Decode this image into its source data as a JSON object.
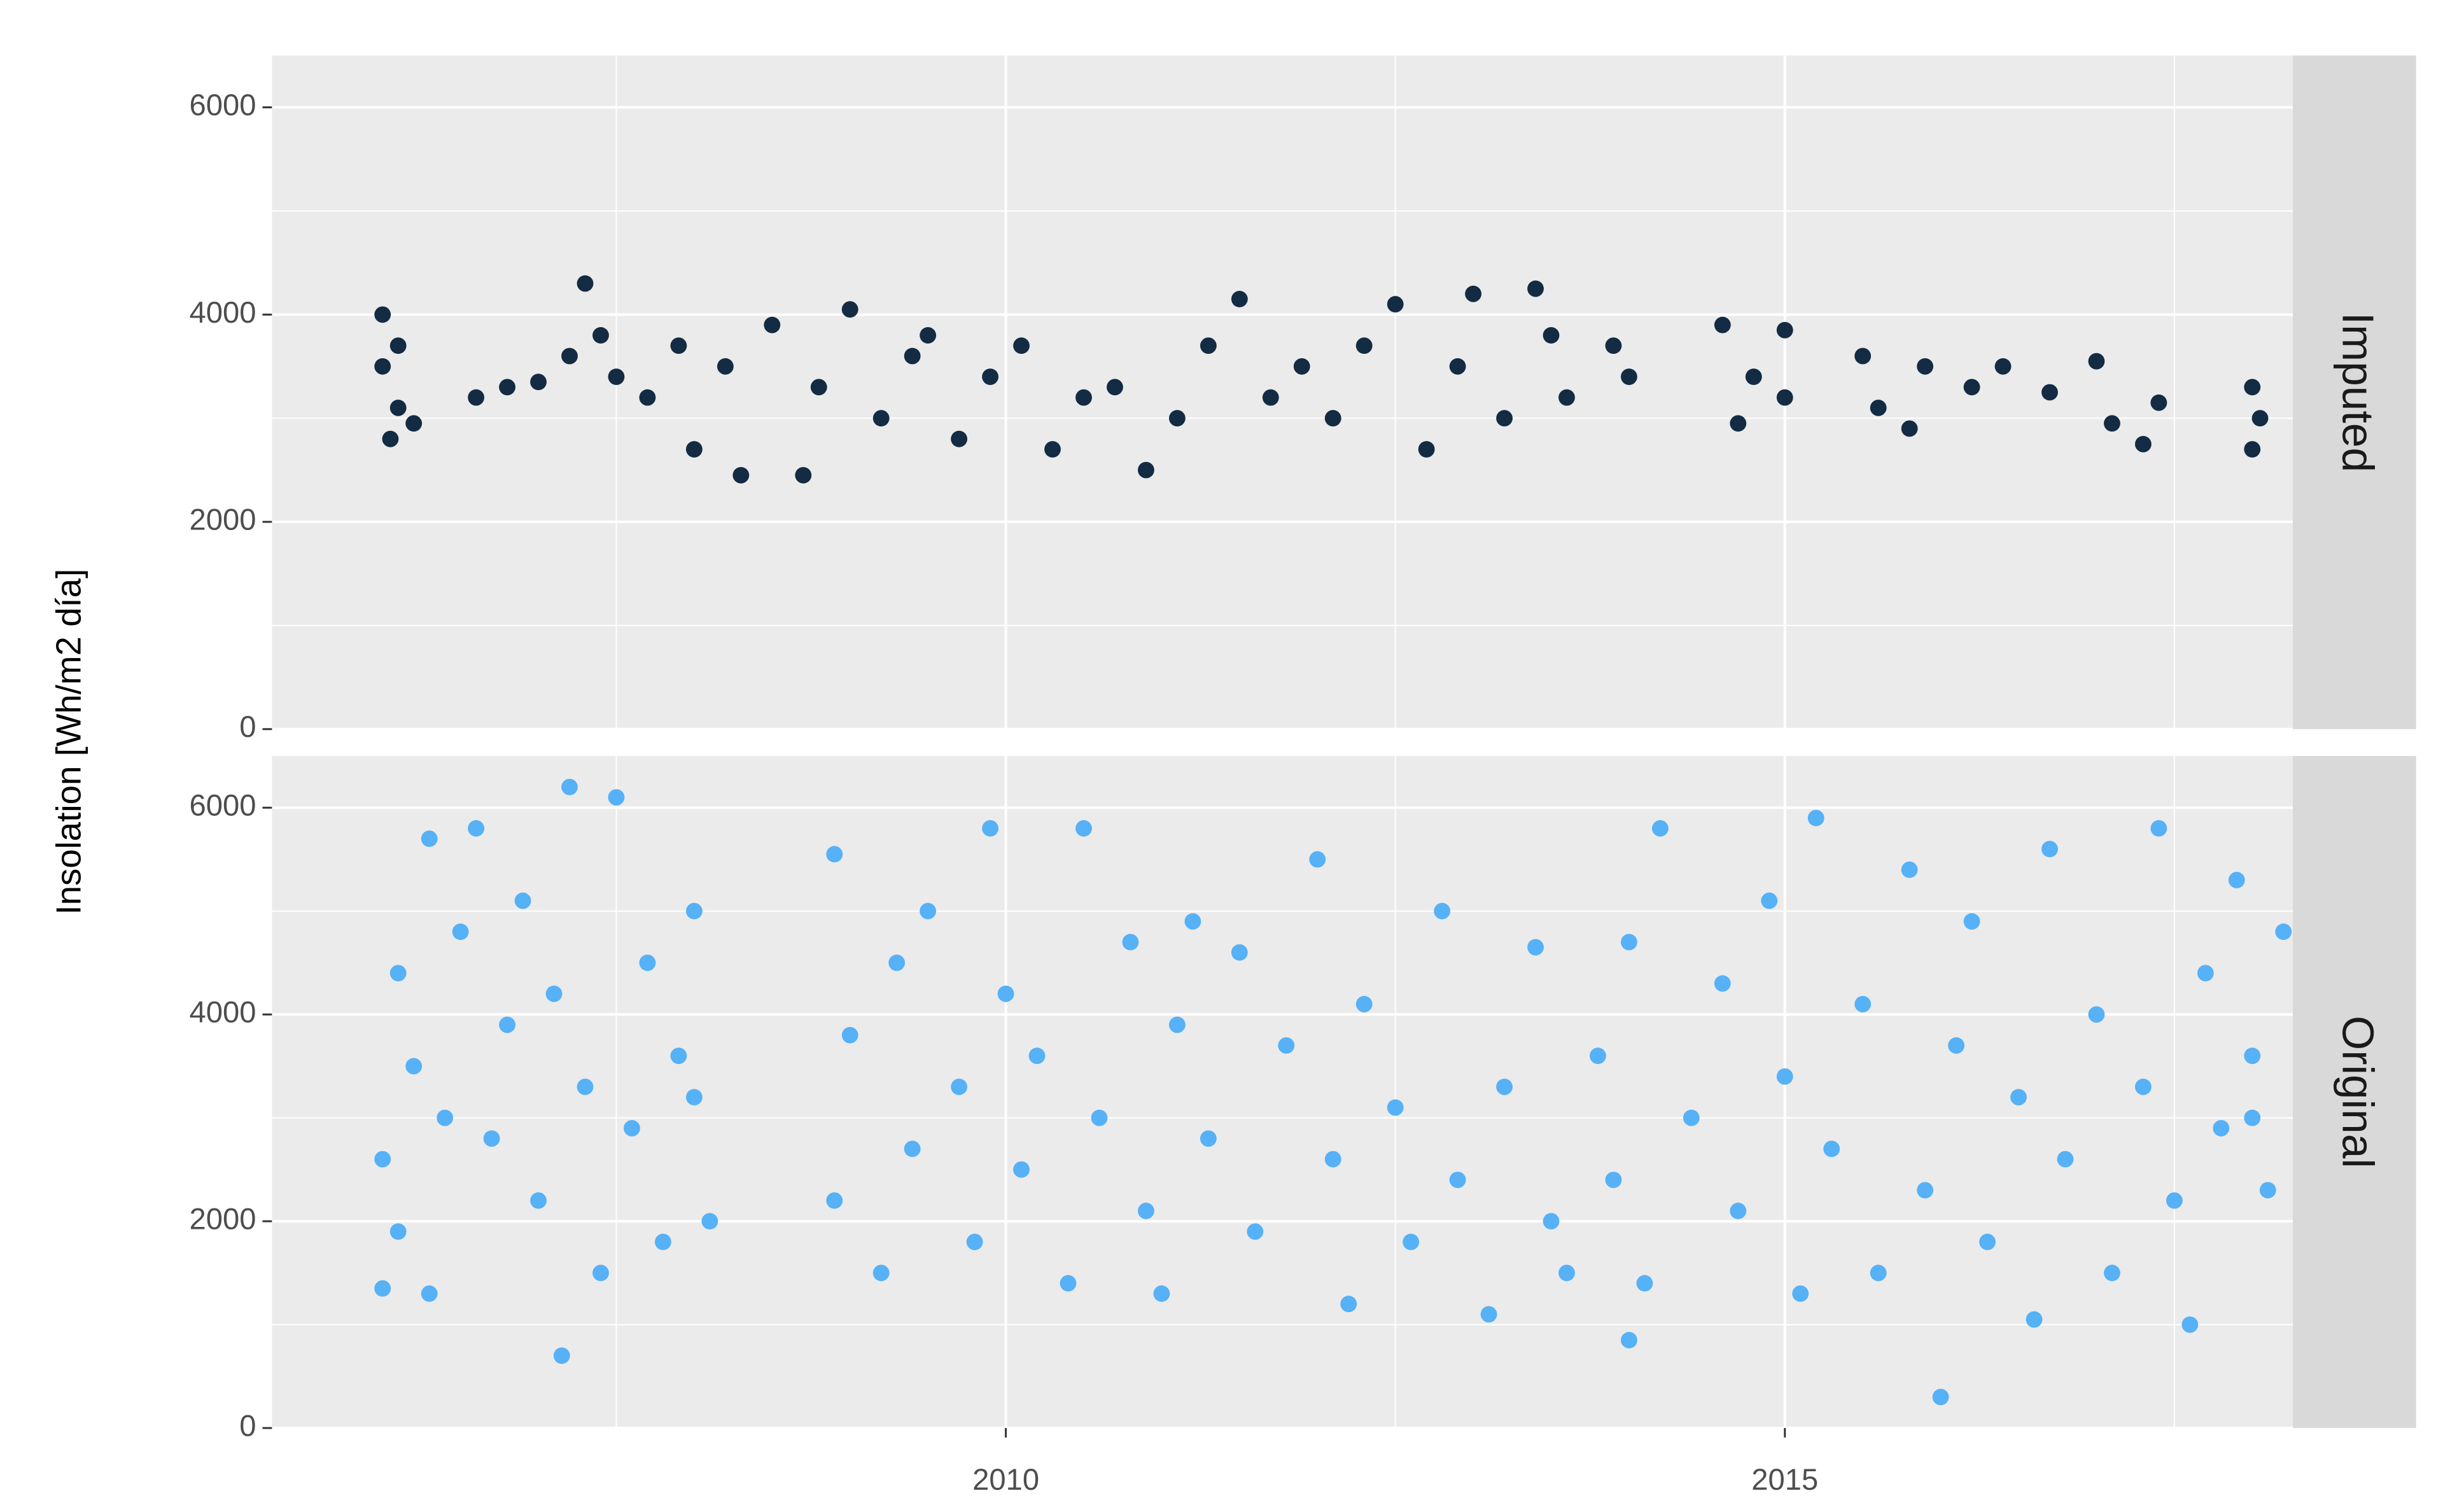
{
  "chart_data": [
    {
      "type": "scatter",
      "facet_label": "Imputed",
      "ylabel": "Insolation [Wh/m2 día]",
      "color": "#132b43",
      "xlim": [
        2005.29,
        2018.26
      ],
      "xticks": [
        2010,
        2015
      ],
      "x_minor_grid": [
        2007.5,
        2012.5,
        2017.5
      ],
      "ylim": [
        0,
        6500
      ],
      "yticks": [
        0,
        2000,
        4000,
        6000
      ],
      "y_minor_grid": [
        1000,
        3000,
        5000
      ],
      "grid": true,
      "x": [
        2006.0,
        2006.0,
        2006.05,
        2006.1,
        2006.1,
        2006.2,
        2006.6,
        2006.8,
        2007.0,
        2007.2,
        2007.3,
        2007.4,
        2007.5,
        2007.7,
        2007.9,
        2008.0,
        2008.2,
        2008.3,
        2008.5,
        2008.7,
        2008.8,
        2009.0,
        2009.2,
        2009.4,
        2009.5,
        2009.7,
        2009.9,
        2010.1,
        2010.3,
        2010.5,
        2010.7,
        2010.9,
        2011.1,
        2011.3,
        2011.5,
        2011.7,
        2011.9,
        2012.1,
        2012.3,
        2012.5,
        2012.7,
        2012.9,
        2013.0,
        2013.2,
        2013.4,
        2013.5,
        2013.6,
        2013.9,
        2014.0,
        2014.6,
        2014.7,
        2014.8,
        2015.0,
        2015.0,
        2015.5,
        2015.6,
        2015.8,
        2015.9,
        2016.2,
        2016.4,
        2016.7,
        2017.0,
        2017.1,
        2017.3,
        2017.4,
        2018.0,
        2018.0,
        2018.05
      ],
      "values": [
        4000,
        3500,
        2800,
        3100,
        3700,
        2950,
        3200,
        3300,
        3350,
        3600,
        4300,
        3800,
        3400,
        3200,
        3700,
        2700,
        3500,
        2450,
        3900,
        2450,
        3300,
        4050,
        3000,
        3600,
        3800,
        2800,
        3400,
        3700,
        2700,
        3200,
        3300,
        2500,
        3000,
        3700,
        4150,
        3200,
        3500,
        3000,
        3700,
        4100,
        2700,
        3500,
        4200,
        3000,
        4250,
        3800,
        3200,
        3700,
        3400,
        3900,
        2950,
        3400,
        3850,
        3200,
        3600,
        3100,
        2900,
        3500,
        3300,
        3500,
        3250,
        3550,
        2950,
        2750,
        3150,
        3300,
        2700,
        3000
      ]
    },
    {
      "type": "scatter",
      "facet_label": "Original",
      "color": "#56b1f7",
      "xlim": [
        2005.29,
        2018.26
      ],
      "xticks": [
        2010,
        2015
      ],
      "x_minor_grid": [
        2007.5,
        2012.5,
        2017.5
      ],
      "ylim": [
        0,
        6500
      ],
      "yticks": [
        0,
        2000,
        4000,
        6000
      ],
      "y_minor_grid": [
        1000,
        3000,
        5000
      ],
      "grid": true,
      "x": [
        2006.0,
        2006.0,
        2006.1,
        2006.1,
        2006.2,
        2006.3,
        2006.3,
        2006.4,
        2006.5,
        2006.6,
        2006.7,
        2006.8,
        2006.9,
        2007.0,
        2007.1,
        2007.2,
        2007.3,
        2007.4,
        2007.5,
        2007.15,
        2007.6,
        2007.7,
        2007.8,
        2007.9,
        2008.0,
        2008.1,
        2008.0,
        2008.9,
        2008.9,
        2009.0,
        2009.2,
        2009.3,
        2009.4,
        2009.5,
        2009.7,
        2009.8,
        2009.9,
        2010.0,
        2010.1,
        2010.2,
        2010.4,
        2010.5,
        2010.6,
        2010.8,
        2010.9,
        2011.0,
        2011.1,
        2011.2,
        2011.3,
        2011.5,
        2011.6,
        2011.8,
        2012.0,
        2012.1,
        2012.2,
        2012.3,
        2012.5,
        2012.6,
        2012.8,
        2012.9,
        2013.1,
        2013.2,
        2013.4,
        2013.5,
        2013.6,
        2013.8,
        2013.9,
        2014.0,
        2014.1,
        2014.2,
        2014.4,
        2014.0,
        2014.6,
        2014.7,
        2014.9,
        2015.0,
        2015.1,
        2015.2,
        2015.3,
        2015.5,
        2015.6,
        2015.8,
        2015.9,
        2016.1,
        2016.2,
        2016.3,
        2016.5,
        2016.6,
        2016.7,
        2016.8,
        2016.0,
        2017.0,
        2017.1,
        2017.3,
        2017.4,
        2017.5,
        2017.6,
        2017.7,
        2017.8,
        2017.9,
        2018.0,
        2018.1,
        2018.2,
        2018.0
      ],
      "values": [
        1350,
        2600,
        4400,
        1900,
        3500,
        5700,
        1300,
        3000,
        4800,
        5800,
        2800,
        3900,
        5100,
        2200,
        4200,
        6200,
        3300,
        1500,
        6100,
        700,
        2900,
        4500,
        1800,
        3600,
        5000,
        2000,
        3200,
        5550,
        2200,
        3800,
        1500,
        4500,
        2700,
        5000,
        3300,
        1800,
        5800,
        4200,
        2500,
        3600,
        1400,
        5800,
        3000,
        4700,
        2100,
        1300,
        3900,
        4900,
        2800,
        4600,
        1900,
        3700,
        5500,
        2600,
        1200,
        4100,
        3100,
        1800,
        5000,
        2400,
        1100,
        3300,
        4650,
        2000,
        1500,
        3600,
        2400,
        4700,
        1400,
        5800,
        3000,
        850,
        4300,
        2100,
        5100,
        3400,
        1300,
        5900,
        2700,
        4100,
        1500,
        5400,
        2300,
        3700,
        4900,
        1800,
        3200,
        1050,
        5600,
        2600,
        300,
        4000,
        1500,
        3300,
        5800,
        2200,
        1000,
        4400,
        2900,
        5300,
        3600,
        2300,
        4800,
        3000
      ]
    }
  ]
}
